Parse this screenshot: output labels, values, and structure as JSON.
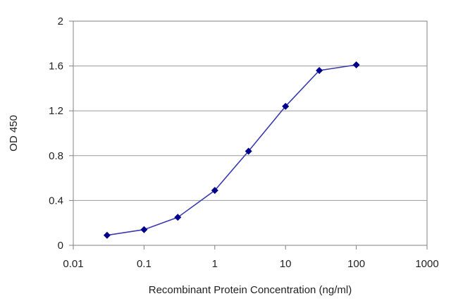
{
  "chart_data": {
    "type": "scatter",
    "title": "",
    "xlabel": "Recombinant Protein Concentration (ng/ml)",
    "ylabel": "OD 450",
    "x_scale": "log",
    "xlim": [
      0.01,
      1000
    ],
    "ylim": [
      0,
      2
    ],
    "x_ticks": [
      "0.01",
      "0.1",
      "1",
      "10",
      "100",
      "1000"
    ],
    "y_ticks": [
      "0",
      "0.4",
      "0.8",
      "1.2",
      "1.6",
      "2"
    ],
    "grid": "horizontal",
    "legend": "none",
    "series": [
      {
        "x": [
          0.03,
          0.1,
          0.3,
          1,
          3,
          10,
          30,
          100
        ],
        "y": [
          0.09,
          0.14,
          0.25,
          0.49,
          0.84,
          1.24,
          1.56,
          1.61
        ],
        "color": "#3a3ab0",
        "marker": "diamond",
        "marker_color": "#00008b"
      }
    ]
  }
}
